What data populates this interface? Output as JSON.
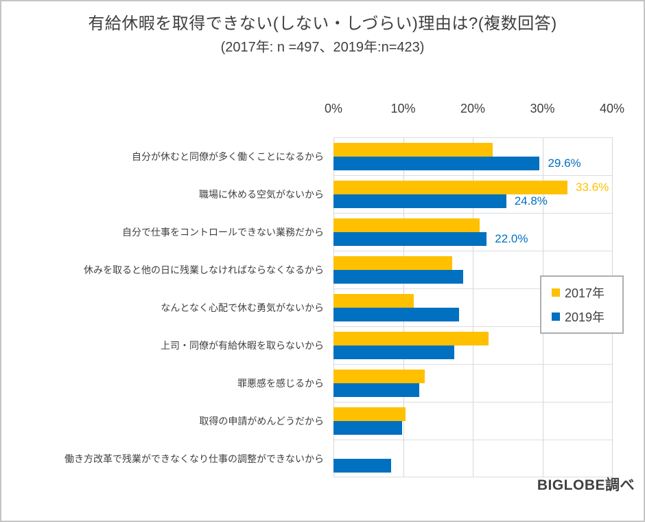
{
  "title": "有給休暇を取得できない(しない・しづらい)理由は?(複数回答)",
  "subtitle": "(2017年: n =497、2019年:n=423)",
  "source_credit": "BIGLOBE調べ",
  "colors": {
    "series_2017": "#FFC000",
    "series_2019": "#0070C0",
    "gridline": "#D9D9D9",
    "text": "#404040",
    "legend_border": "#AEAEAE"
  },
  "legend": {
    "items": [
      {
        "label": "2017年",
        "color": "#FFC000"
      },
      {
        "label": "2019年",
        "color": "#0070C0"
      }
    ]
  },
  "chart_data": {
    "type": "bar",
    "orientation": "horizontal",
    "title": "有給休暇を取得できない(しない・しづらい)理由は?(複数回答)",
    "subtitle": "(2017年: n =497、2019年:n=423)",
    "categories": [
      "自分が休むと同僚が多く働くことになるから",
      "職場に休める空気がないから",
      "自分で仕事をコントロールできない業務だから",
      "休みを取ると他の日に残業しなければならなくなるから",
      "なんとなく心配で休む勇気がないから",
      "上司・同僚が有給休暇を取らないから",
      "罪悪感を感じるから",
      "取得の申請がめんどうだから",
      "働き方改革で残業ができなくなり仕事の調整ができないから"
    ],
    "series": [
      {
        "name": "2017年",
        "color": "#FFC000",
        "values": [
          22.9,
          33.6,
          21.0,
          17.0,
          11.5,
          22.3,
          13.1,
          10.3,
          null
        ],
        "shown_labels": [
          null,
          "33.6%",
          null,
          null,
          null,
          null,
          null,
          null,
          null
        ]
      },
      {
        "name": "2019年",
        "color": "#0070C0",
        "values": [
          29.6,
          24.8,
          22.0,
          18.6,
          18.0,
          17.3,
          12.3,
          9.9,
          8.3
        ],
        "shown_labels": [
          "29.6%",
          "24.8%",
          "22.0%",
          null,
          null,
          null,
          null,
          null,
          null
        ]
      }
    ],
    "x_ticks": [
      "0%",
      "10%",
      "20%",
      "30%",
      "40%"
    ],
    "xlim": [
      0,
      40
    ],
    "grid": true,
    "legend_position": "middle-right"
  }
}
